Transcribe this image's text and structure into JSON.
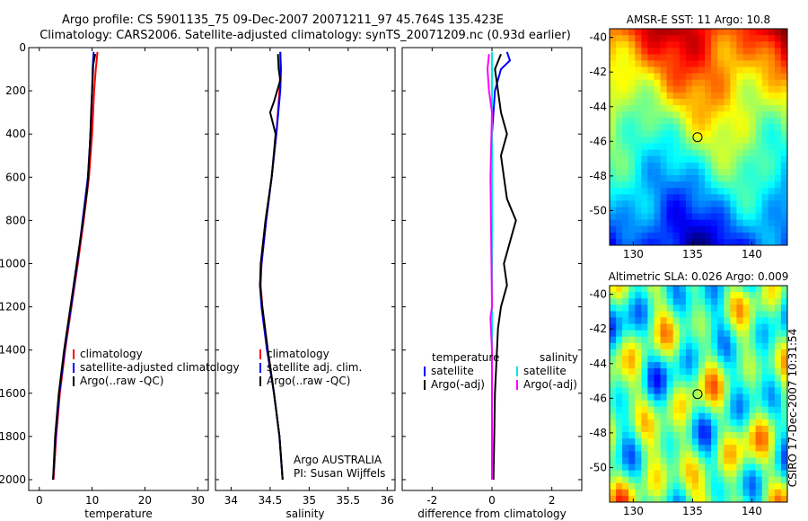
{
  "header": {
    "line1": "Argo profile: CS 5901135_75 09-Dec-2007 20071211_97 45.764S 135.423E",
    "line2": "Climatology: CARS2006. Satellite-adjusted climatology: synTS_20071209.nc (0.93d earlier)"
  },
  "side_label": "CSIRO 17-Dec-2007 10:31:54",
  "colors": {
    "climatology": "#ff0000",
    "satellite": "#0000ff",
    "argo": "#000000",
    "sal_satellite": "#00e5e5",
    "sal_argo": "#ff00ff"
  },
  "chart_data": [
    {
      "type": "line",
      "id": "temperature",
      "xlabel": "temperature",
      "ylabel": "",
      "xlim": [
        -2,
        32
      ],
      "ylim": [
        2050,
        0
      ],
      "xticks": [
        0,
        10,
        20,
        30
      ],
      "yticks": [
        0,
        200,
        400,
        600,
        800,
        1000,
        1200,
        1400,
        1600,
        1800,
        2000
      ],
      "legend": [
        "climatology",
        "satellite-adjusted climatology",
        "Argo(..raw -QC)"
      ],
      "series": [
        {
          "name": "climatology",
          "points": [
            [
              11.0,
              20
            ],
            [
              10.9,
              50
            ],
            [
              10.7,
              100
            ],
            [
              10.4,
              200
            ],
            [
              10.0,
              400
            ],
            [
              9.4,
              600
            ],
            [
              8.4,
              800
            ],
            [
              7.3,
              1000
            ],
            [
              6.1,
              1200
            ],
            [
              4.9,
              1400
            ],
            [
              3.9,
              1600
            ],
            [
              3.2,
              1800
            ],
            [
              2.7,
              2000
            ]
          ]
        },
        {
          "name": "satellite-adjusted climatology",
          "points": [
            [
              10.3,
              20
            ],
            [
              10.2,
              50
            ],
            [
              10.1,
              100
            ],
            [
              10.0,
              200
            ],
            [
              9.7,
              400
            ],
            [
              9.2,
              600
            ],
            [
              8.2,
              800
            ],
            [
              7.2,
              1000
            ],
            [
              6.0,
              1200
            ],
            [
              4.8,
              1400
            ],
            [
              3.8,
              1600
            ],
            [
              3.1,
              1800
            ],
            [
              2.6,
              2000
            ]
          ]
        },
        {
          "name": "Argo(..raw -QC)",
          "points": [
            [
              10.6,
              30
            ],
            [
              10.2,
              80
            ],
            [
              10.1,
              150
            ],
            [
              9.9,
              250
            ],
            [
              9.6,
              450
            ],
            [
              9.1,
              650
            ],
            [
              8.3,
              800
            ],
            [
              7.1,
              1000
            ],
            [
              5.9,
              1200
            ],
            [
              4.7,
              1400
            ],
            [
              3.7,
              1600
            ],
            [
              3.0,
              1800
            ],
            [
              2.6,
              2000
            ]
          ]
        }
      ]
    },
    {
      "type": "line",
      "id": "salinity",
      "xlabel": "salinity",
      "xlim": [
        33.8,
        36.1
      ],
      "ylim": [
        2050,
        0
      ],
      "xticks": [
        34,
        34.5,
        35,
        35.5,
        36
      ],
      "legend": [
        "climatology",
        "satellite adj. clim.",
        "Argo(..raw -QC)"
      ],
      "annotation": [
        "Argo AUSTRALIA",
        "PI: Susan Wijffels"
      ],
      "series": [
        {
          "name": "climatology",
          "points": [
            [
              34.63,
              20
            ],
            [
              34.63,
              100
            ],
            [
              34.62,
              200
            ],
            [
              34.58,
              400
            ],
            [
              34.52,
              600
            ],
            [
              34.45,
              800
            ],
            [
              34.39,
              1000
            ],
            [
              34.38,
              1100
            ],
            [
              34.4,
              1200
            ],
            [
              34.47,
              1400
            ],
            [
              34.55,
              1600
            ],
            [
              34.62,
              1800
            ],
            [
              34.66,
              2000
            ]
          ]
        },
        {
          "name": "satellite adj. clim.",
          "points": [
            [
              34.63,
              20
            ],
            [
              34.64,
              100
            ],
            [
              34.63,
              200
            ],
            [
              34.58,
              400
            ],
            [
              34.52,
              600
            ],
            [
              34.45,
              800
            ],
            [
              34.39,
              1000
            ],
            [
              34.37,
              1100
            ],
            [
              34.39,
              1200
            ],
            [
              34.46,
              1400
            ],
            [
              34.55,
              1600
            ],
            [
              34.62,
              1800
            ],
            [
              34.66,
              2000
            ]
          ]
        },
        {
          "name": "Argo(..raw -QC)",
          "points": [
            [
              34.6,
              30
            ],
            [
              34.61,
              100
            ],
            [
              34.63,
              150
            ],
            [
              34.55,
              250
            ],
            [
              34.5,
              300
            ],
            [
              34.57,
              400
            ],
            [
              34.52,
              600
            ],
            [
              34.44,
              800
            ],
            [
              34.38,
              1000
            ],
            [
              34.37,
              1100
            ],
            [
              34.4,
              1200
            ],
            [
              34.47,
              1400
            ],
            [
              34.55,
              1600
            ],
            [
              34.62,
              1800
            ],
            [
              34.66,
              2000
            ]
          ]
        }
      ]
    },
    {
      "type": "line",
      "id": "difference",
      "xlabel": "difference from climatology",
      "xlim": [
        -3,
        3
      ],
      "ylim": [
        2050,
        0
      ],
      "xticks": [
        -2,
        0,
        2
      ],
      "legend_left_title": "temperature",
      "legend_right_title": "salinity",
      "legend_left": [
        "satellite",
        "Argo(-adj)"
      ],
      "legend_right": [
        "satellite",
        "Argo(-adj)"
      ],
      "series": [
        {
          "name": "temperature satellite",
          "points": [
            [
              0.5,
              20
            ],
            [
              0.6,
              60
            ],
            [
              0.3,
              100
            ],
            [
              0.1,
              200
            ],
            [
              0.0,
              400
            ],
            [
              0.0,
              800
            ],
            [
              0.0,
              2000
            ]
          ]
        },
        {
          "name": "temperature Argo(-adj)",
          "points": [
            [
              0.3,
              30
            ],
            [
              0.1,
              100
            ],
            [
              0.2,
              200
            ],
            [
              0.3,
              300
            ],
            [
              0.5,
              400
            ],
            [
              0.3,
              500
            ],
            [
              0.4,
              600
            ],
            [
              0.5,
              700
            ],
            [
              0.8,
              800
            ],
            [
              0.6,
              900
            ],
            [
              0.4,
              1000
            ],
            [
              0.5,
              1100
            ],
            [
              0.3,
              1200
            ],
            [
              0.2,
              1300
            ],
            [
              0.1,
              1600
            ],
            [
              0.05,
              2000
            ]
          ]
        },
        {
          "name": "salinity satellite",
          "points": [
            [
              0.0,
              20
            ],
            [
              0.0,
              2000
            ]
          ]
        },
        {
          "name": "salinity Argo(-adj)",
          "points": [
            [
              -0.1,
              30
            ],
            [
              -0.15,
              100
            ],
            [
              -0.1,
              200
            ],
            [
              0.0,
              300
            ],
            [
              -0.05,
              600
            ],
            [
              0.0,
              1200
            ],
            [
              -0.05,
              1250
            ],
            [
              0.0,
              1400
            ],
            [
              0.0,
              2000
            ]
          ]
        }
      ]
    },
    {
      "type": "heatmap",
      "id": "sst",
      "title": "AMSR-E SST: 11 Argo: 10.8",
      "xlim": [
        128,
        143
      ],
      "ylim": [
        -52,
        -39.5
      ],
      "xticks": [
        130,
        135,
        140
      ],
      "yticks": [
        -40,
        -42,
        -44,
        -46,
        -48,
        -50
      ],
      "marker": [
        135.42,
        -45.76
      ]
    },
    {
      "type": "heatmap",
      "id": "sla",
      "title": "Altimetric SLA: 0.026 Argo: 0.009",
      "xlim": [
        128,
        143
      ],
      "ylim": [
        -52,
        -39.5
      ],
      "xticks": [
        130,
        135,
        140
      ],
      "yticks": [
        -40,
        -42,
        -44,
        -46,
        -48,
        -50
      ],
      "marker": [
        135.42,
        -45.76
      ]
    }
  ]
}
